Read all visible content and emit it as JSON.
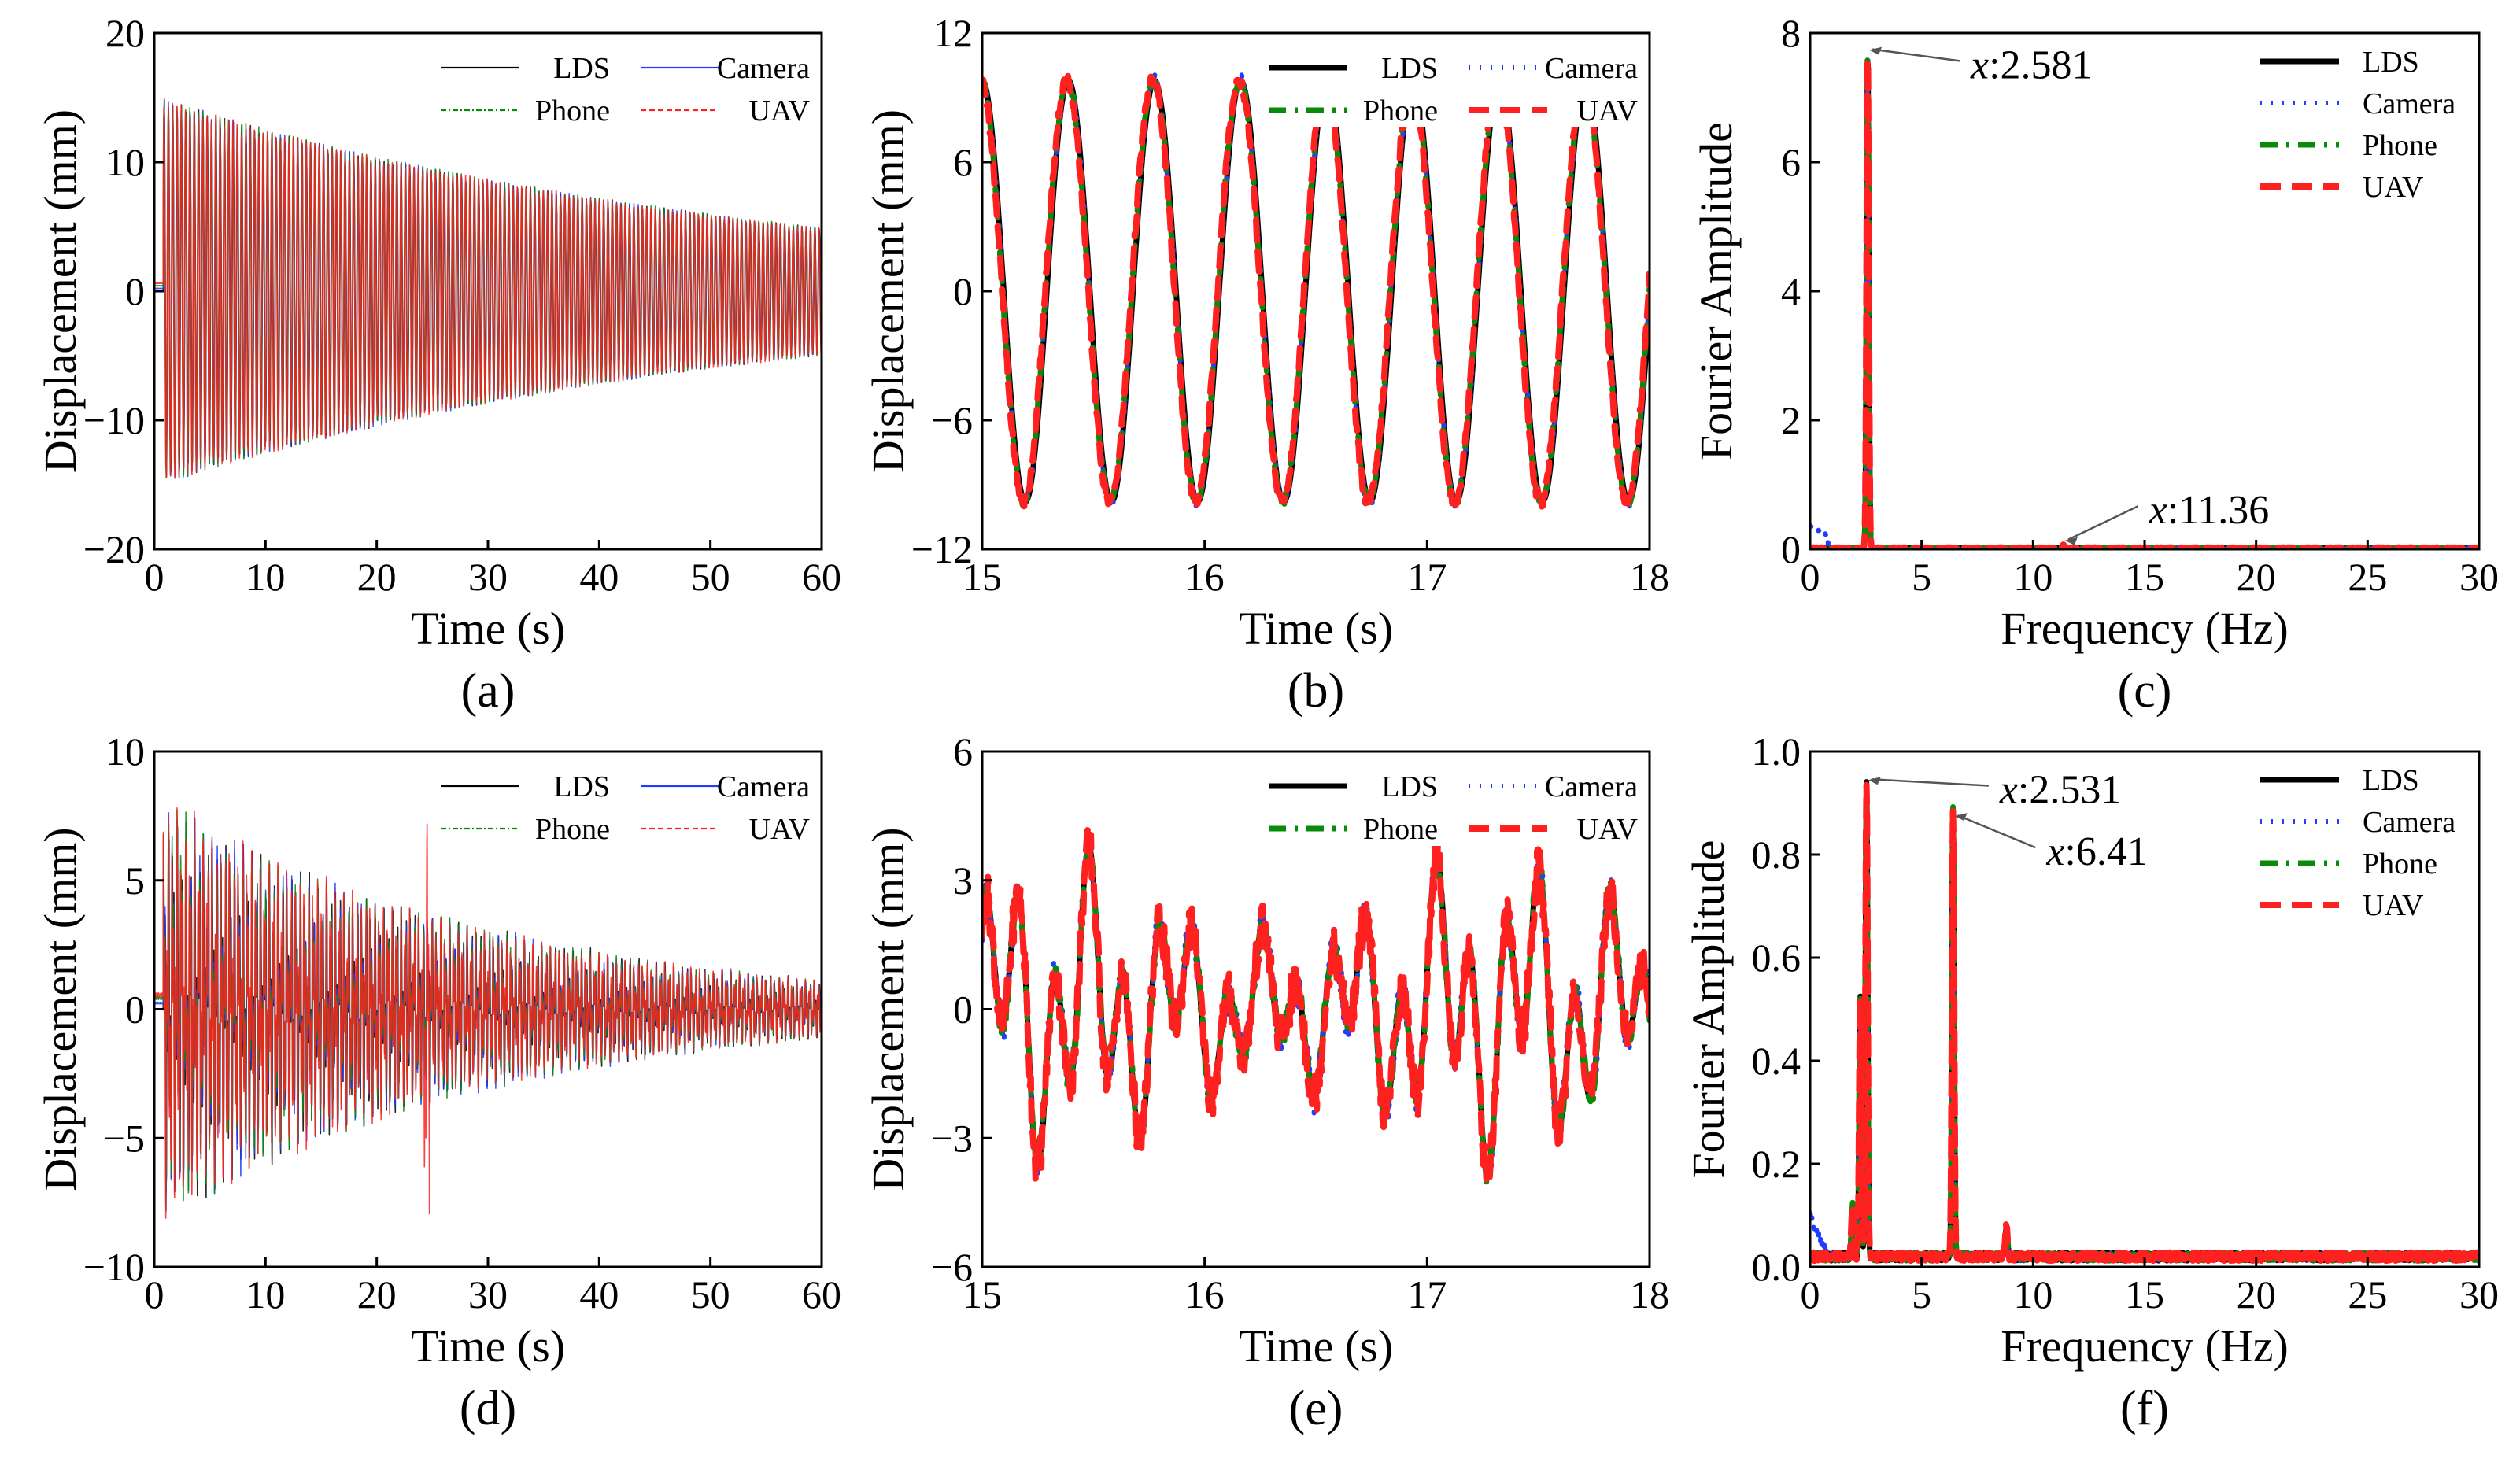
{
  "figure": {
    "colors": {
      "LDS": "#000000",
      "Camera": "#1f3cff",
      "Phone": "#0a8a0a",
      "UAV": "#ff2020"
    }
  },
  "chart_data": [
    {
      "id": "a",
      "type": "line",
      "panel_label": "(a)",
      "xlabel": "Time (s)",
      "ylabel": "Displacement (mm)",
      "xlim": [
        0,
        60
      ],
      "ylim": [
        -20,
        20
      ],
      "xticks": [
        0,
        10,
        20,
        30,
        40,
        50,
        60
      ],
      "yticks": [
        -20,
        -10,
        0,
        10,
        20
      ],
      "legend": {
        "placement": "top-right",
        "style": "thin",
        "layout": "two-column",
        "entries": [
          "LDS",
          "Camera",
          "Phone",
          "UAV"
        ]
      },
      "signal": {
        "kind": "decay",
        "amp_start": 15,
        "amp_end": 5,
        "freq": 2.581,
        "start_time": 0.8
      },
      "series": [
        {
          "name": "LDS"
        },
        {
          "name": "Camera"
        },
        {
          "name": "Phone"
        },
        {
          "name": "UAV"
        }
      ],
      "annotations": []
    },
    {
      "id": "b",
      "type": "line",
      "panel_label": "(b)",
      "xlabel": "Time (s)",
      "ylabel": "Displacement (mm)",
      "xlim": [
        15,
        18
      ],
      "ylim": [
        -12,
        12
      ],
      "xticks": [
        15,
        16,
        17,
        18
      ],
      "yticks": [
        -12,
        -6,
        0,
        6,
        12
      ],
      "legend": {
        "placement": "top-right",
        "style": "thick",
        "layout": "two-column",
        "entries": [
          "LDS",
          "Camera",
          "Phone",
          "UAV"
        ]
      },
      "signal": {
        "kind": "sine",
        "amp": 9.8,
        "freq": 2.581,
        "phase_at_start": 1.571
      },
      "series": [
        {
          "name": "LDS"
        },
        {
          "name": "Camera"
        },
        {
          "name": "Phone"
        },
        {
          "name": "UAV"
        }
      ],
      "annotations": []
    },
    {
      "id": "c",
      "type": "line",
      "panel_label": "(c)",
      "xlabel": "Frequency (Hz)",
      "ylabel": "Fourier Amplitude",
      "xlim": [
        0,
        30
      ],
      "ylim": [
        0,
        8
      ],
      "xticks": [
        0,
        5,
        10,
        15,
        20,
        25,
        30
      ],
      "yticks": [
        0,
        2,
        4,
        6,
        8
      ],
      "legend": {
        "placement": "top-right",
        "style": "thick",
        "layout": "one-column",
        "entries": [
          "LDS",
          "Camera",
          "Phone",
          "UAV"
        ]
      },
      "signal": {
        "kind": "spectrum",
        "peaks": [
          {
            "f": 2.581,
            "a": 7.7
          },
          {
            "f": 11.36,
            "a": 0.05
          }
        ],
        "floor": 0.02
      },
      "series": [
        {
          "name": "LDS"
        },
        {
          "name": "Camera"
        },
        {
          "name": "Phone"
        },
        {
          "name": "UAV"
        }
      ],
      "annotations": [
        {
          "prefix": "x",
          "value": ":2.581",
          "at_x": 2.581,
          "at_y": 7.7,
          "text_x": 7.2,
          "text_y": 7.3
        },
        {
          "prefix": "x",
          "value": ":11.36",
          "at_x": 11.36,
          "at_y": 0.1,
          "text_x": 15.2,
          "text_y": 0.4
        }
      ]
    },
    {
      "id": "d",
      "type": "line",
      "panel_label": "(d)",
      "xlabel": "Time (s)",
      "ylabel": "Displacement (mm)",
      "xlim": [
        0,
        60
      ],
      "ylim": [
        -10,
        10
      ],
      "xticks": [
        0,
        10,
        20,
        30,
        40,
        50,
        60
      ],
      "yticks": [
        -10,
        -5,
        0,
        5,
        10
      ],
      "legend": {
        "placement": "top-right",
        "style": "thin",
        "layout": "two-column",
        "entries": [
          "LDS",
          "Camera",
          "Phone",
          "UAV"
        ]
      },
      "signal": {
        "kind": "decay2",
        "amp_start": 7.2,
        "amp_end": 1.0,
        "start_time": 0.8
      },
      "series": [
        {
          "name": "LDS"
        },
        {
          "name": "Camera"
        },
        {
          "name": "Phone"
        },
        {
          "name": "UAV"
        }
      ],
      "annotations": []
    },
    {
      "id": "e",
      "type": "line",
      "panel_label": "(e)",
      "xlabel": "Time (s)",
      "ylabel": "Displacement (mm)",
      "xlim": [
        15,
        18
      ],
      "ylim": [
        -6,
        6
      ],
      "xticks": [
        15,
        16,
        17,
        18
      ],
      "yticks": [
        -6,
        -3,
        0,
        3,
        6
      ],
      "legend": {
        "placement": "top-right",
        "style": "thick",
        "layout": "two-column",
        "entries": [
          "LDS",
          "Camera",
          "Phone",
          "UAV"
        ]
      },
      "signal": {
        "kind": "twotone",
        "a1": 1.3,
        "f1": 2.531,
        "a2": 1.6,
        "f2": 6.41
      },
      "series": [
        {
          "name": "LDS"
        },
        {
          "name": "Camera"
        },
        {
          "name": "Phone"
        },
        {
          "name": "UAV"
        }
      ],
      "annotations": []
    },
    {
      "id": "f",
      "type": "line",
      "panel_label": "(f)",
      "xlabel": "Frequency (Hz)",
      "ylabel": "Fourier Amplitude",
      "xlim": [
        0,
        30
      ],
      "ylim": [
        0,
        1.0
      ],
      "xticks": [
        0,
        5,
        10,
        15,
        20,
        25,
        30
      ],
      "yticks": [
        0.0,
        0.2,
        0.4,
        0.6,
        0.8,
        1.0
      ],
      "ytick_decimals": 1,
      "legend": {
        "placement": "top-right",
        "style": "thick",
        "layout": "one-column",
        "entries": [
          "LDS",
          "Camera",
          "Phone",
          "UAV"
        ]
      },
      "signal": {
        "kind": "spectrum",
        "peaks": [
          {
            "f": 1.9,
            "a": 0.1
          },
          {
            "f": 2.25,
            "a": 0.5
          },
          {
            "f": 2.531,
            "a": 0.92
          },
          {
            "f": 6.41,
            "a": 0.87
          },
          {
            "f": 8.8,
            "a": 0.06
          }
        ],
        "floor": 0.02
      },
      "series": [
        {
          "name": "LDS"
        },
        {
          "name": "Camera"
        },
        {
          "name": "Phone"
        },
        {
          "name": "UAV"
        }
      ],
      "annotations": [
        {
          "prefix": "x",
          "value": ":2.531",
          "at_x": 2.531,
          "at_y": 0.94,
          "text_x": 8.5,
          "text_y": 0.9
        },
        {
          "prefix": "x",
          "value": ":6.41",
          "at_x": 6.41,
          "at_y": 0.87,
          "text_x": 10.6,
          "text_y": 0.78
        }
      ]
    }
  ]
}
